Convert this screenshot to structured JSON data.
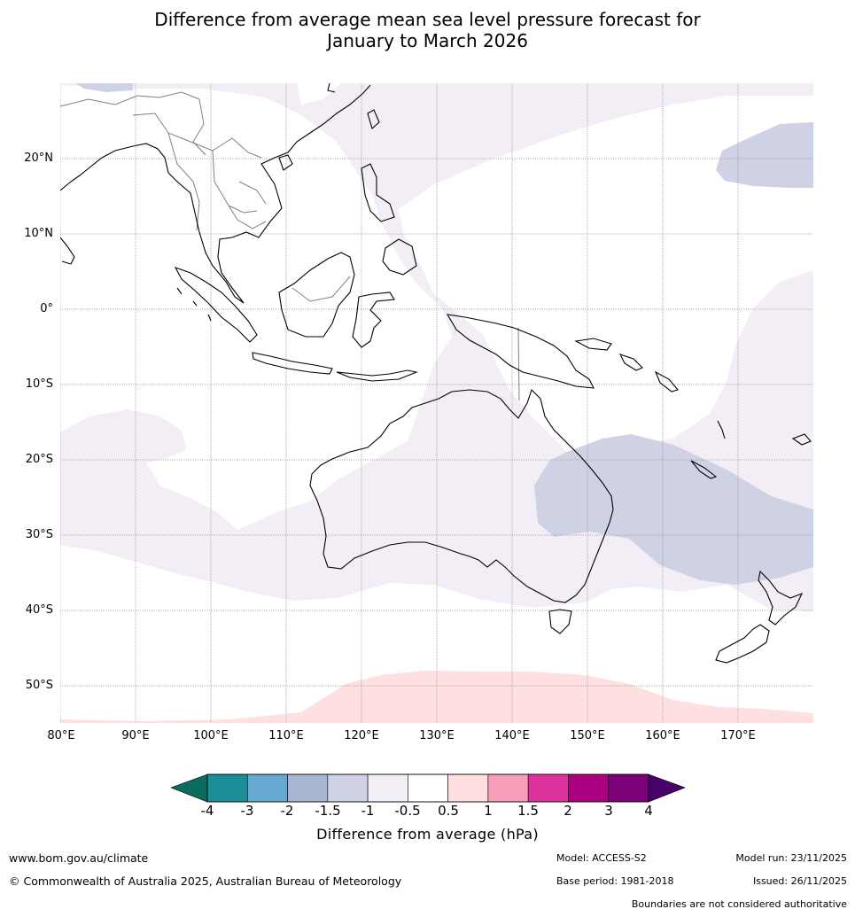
{
  "title": {
    "line1": "Difference from average mean sea level pressure forecast for",
    "line2": "January to March 2026"
  },
  "map": {
    "lat_labels": [
      "20°N",
      "10°N",
      "0°",
      "10°S",
      "20°S",
      "30°S",
      "40°S",
      "50°S"
    ],
    "lon_labels": [
      "80°E",
      "90°E",
      "100°E",
      "110°E",
      "120°E",
      "130°E",
      "140°E",
      "150°E",
      "160°E",
      "170°E"
    ],
    "colors": {
      "ocean_neutral": "#ffffff",
      "anomaly_neg_0_5_to_1": "#f3edf5",
      "anomaly_neg_1_to_1_5": "#cfd1e5",
      "anomaly_pos_0_5_to_1": "#fde0df",
      "coastline": "#000000",
      "borders": "#808080",
      "gridlines": "#9a9a9a"
    }
  },
  "colorbar": {
    "ticks": [
      "-4",
      "-3",
      "-2",
      "-1.5",
      "-1",
      "-0.5",
      "0.5",
      "1",
      "1.5",
      "2",
      "3",
      "4"
    ],
    "colors": [
      "#1b8f97",
      "#66a9d0",
      "#a8b6d1",
      "#cfd1e5",
      "#f3edf5",
      "#ffffff",
      "#fde0df",
      "#f79fb9",
      "#db339b",
      "#ab007f",
      "#7a0177"
    ],
    "under_color": "#0b6b5c",
    "over_color": "#49006a",
    "label": "Difference from average (hPa)"
  },
  "footer": {
    "website": "www.bom.gov.au/climate",
    "copyright": "© Commonwealth of Australia 2025, Australian Bureau of Meteorology",
    "model": "Model: ACCESS-S2",
    "base_period": "Base period: 1981-2018",
    "model_run": "Model run: 23/11/2025",
    "issued": "Issued: 26/11/2025",
    "disclaimer": "Boundaries are not considered authoritative"
  }
}
